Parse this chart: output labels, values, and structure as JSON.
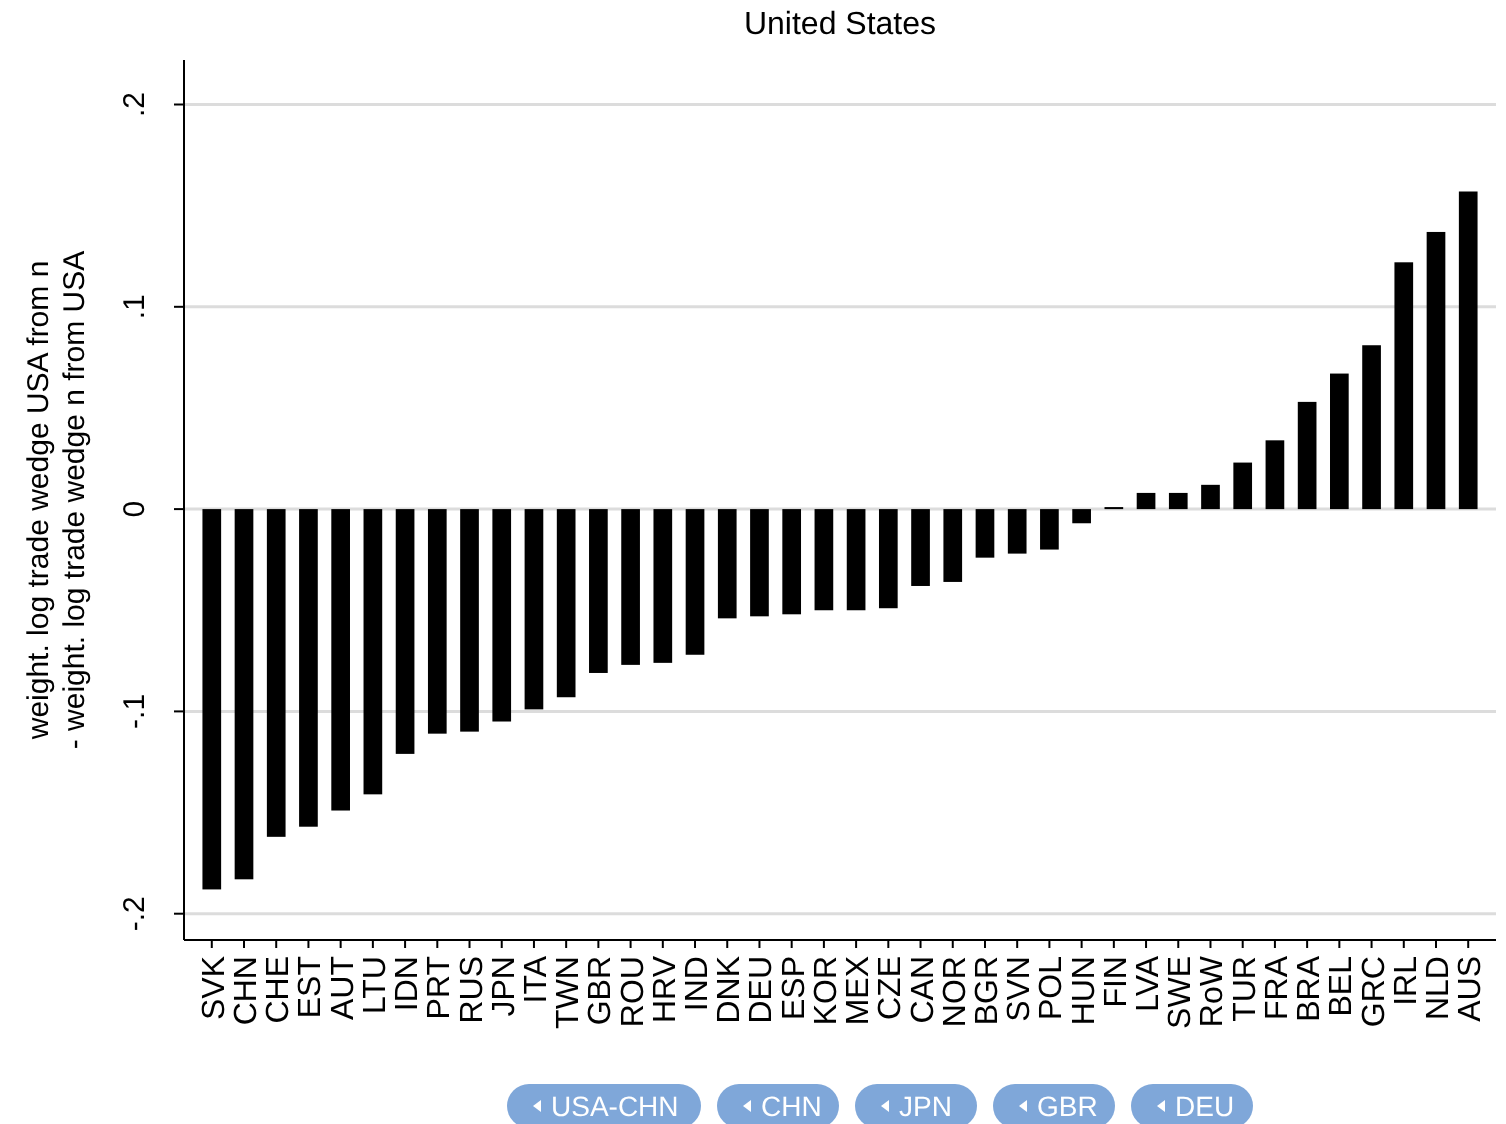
{
  "chart_data": {
    "type": "bar",
    "title": "United States",
    "ylabel": "weight. log trade wedge USA from n\n- weight. log trade wedge n from USA",
    "categories": [
      "SVK",
      "CHN",
      "CHE",
      "EST",
      "AUT",
      "LTU",
      "IDN",
      "PRT",
      "RUS",
      "JPN",
      "ITA",
      "TWN",
      "GBR",
      "ROU",
      "HRV",
      "IND",
      "DNK",
      "DEU",
      "ESP",
      "KOR",
      "MEX",
      "CZE",
      "CAN",
      "NOR",
      "BGR",
      "SVN",
      "POL",
      "HUN",
      "FIN",
      "LVA",
      "SWE",
      "RoW",
      "TUR",
      "FRA",
      "BRA",
      "BEL",
      "GRC",
      "IRL",
      "NLD",
      "AUS"
    ],
    "values": [
      -0.188,
      -0.183,
      -0.162,
      -0.157,
      -0.149,
      -0.141,
      -0.121,
      -0.111,
      -0.11,
      -0.105,
      -0.099,
      -0.093,
      -0.081,
      -0.077,
      -0.076,
      -0.072,
      -0.054,
      -0.053,
      -0.052,
      -0.05,
      -0.05,
      -0.049,
      -0.038,
      -0.036,
      -0.024,
      -0.022,
      -0.02,
      -0.007,
      0.001,
      0.008,
      0.008,
      0.012,
      0.023,
      0.034,
      0.053,
      0.067,
      0.081,
      0.122,
      0.137,
      0.157
    ],
    "color": "#000000",
    "ylim": [
      -0.213,
      0.222
    ],
    "yticks": [
      {
        "value": -0.2,
        "label": "-.2"
      },
      {
        "value": -0.1,
        "label": "-.1"
      },
      0,
      {
        "value": 0.1,
        "label": ".1"
      },
      {
        "value": 0.2,
        "label": ".2"
      }
    ],
    "grid": "y",
    "annotations": [
      "USA-CHN",
      "CHN",
      "JPN",
      "GBR",
      "DEU"
    ]
  }
}
